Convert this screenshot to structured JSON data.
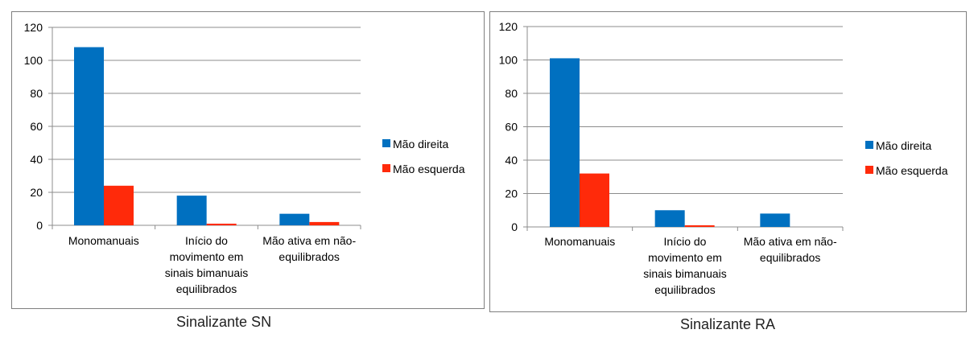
{
  "chart_data": [
    {
      "type": "bar",
      "caption": "Sinalizante SN",
      "categories": [
        "Monomanuais",
        "Início do movimento em sinais bimanuais equilibrados",
        "Mão ativa em não-equilibrados"
      ],
      "category_lines": [
        [
          "Monomanuais"
        ],
        [
          "Início do",
          "movimento em",
          "sinais bimanuais",
          "equilibrados"
        ],
        [
          "Mão ativa em não-",
          "equilibrados"
        ]
      ],
      "series": [
        {
          "name": "Mão direita",
          "color": "#0070c0",
          "values": [
            108,
            18,
            7
          ]
        },
        {
          "name": "Mão esquerda",
          "color": "#ff2a0a",
          "values": [
            24,
            1,
            2
          ]
        }
      ],
      "ylim": [
        0,
        120
      ],
      "yticks": [
        "0",
        "20",
        "40",
        "60",
        "80",
        "100",
        "120"
      ],
      "grid": true,
      "legend": "right"
    },
    {
      "type": "bar",
      "caption": "Sinalizante RA",
      "categories": [
        "Monomanuais",
        "Início do movimento em sinais bimanuais equilibrados",
        "Mão ativa em não-equilibrados"
      ],
      "category_lines": [
        [
          "Monomanuais"
        ],
        [
          "Início do",
          "movimento em",
          "sinais bimanuais",
          "equilibrados"
        ],
        [
          "Mão ativa em não-",
          "equilibrados"
        ]
      ],
      "series": [
        {
          "name": "Mão direita",
          "color": "#0070c0",
          "values": [
            101,
            10,
            8
          ]
        },
        {
          "name": "Mão esquerda",
          "color": "#ff2a0a",
          "values": [
            32,
            1,
            0
          ]
        }
      ],
      "ylim": [
        0,
        120
      ],
      "yticks": [
        "0",
        "20",
        "40",
        "60",
        "80",
        "100",
        "120"
      ],
      "grid": true,
      "legend": "right"
    }
  ]
}
